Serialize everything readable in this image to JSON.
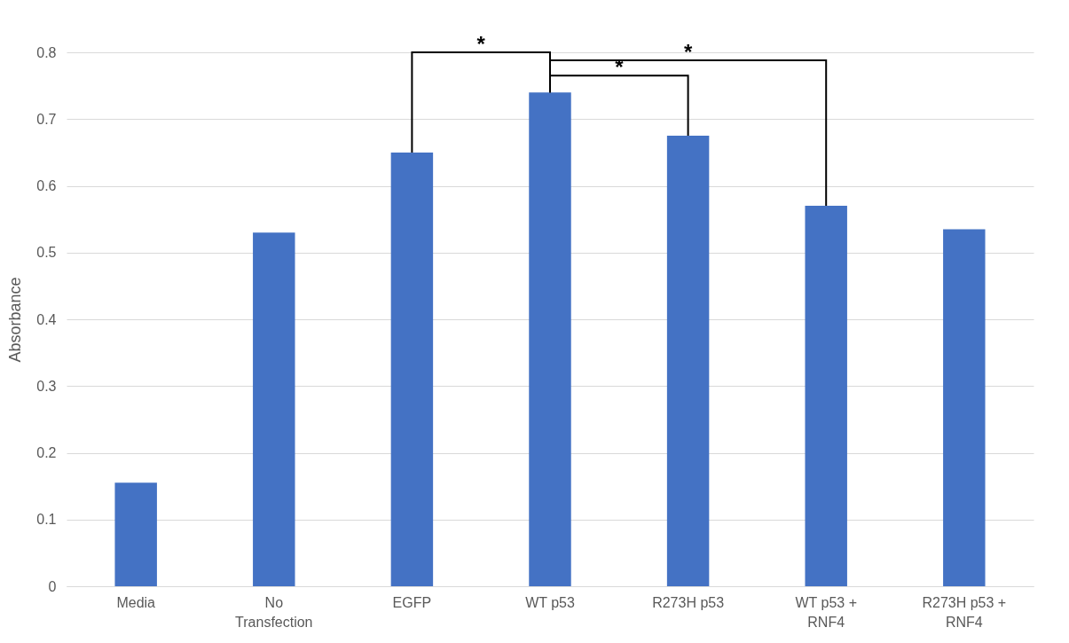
{
  "chart_data": {
    "type": "bar",
    "ylabel": "Absorbance",
    "categories": [
      "Media",
      "No Transfection",
      "EGFP",
      "WT p53",
      "R273H p53",
      "WT p53 + RNF4",
      "R273H p53 + RNF4"
    ],
    "values": [
      0.155,
      0.53,
      0.65,
      0.74,
      0.675,
      0.57,
      0.535
    ],
    "color": "#4472c4",
    "ylim": [
      0,
      0.8
    ],
    "yticks": [
      0,
      0.1,
      0.2,
      0.3,
      0.4,
      0.5,
      0.6,
      0.7,
      0.8
    ],
    "grid": "y",
    "annotations": [
      "*",
      "*",
      "*"
    ]
  }
}
